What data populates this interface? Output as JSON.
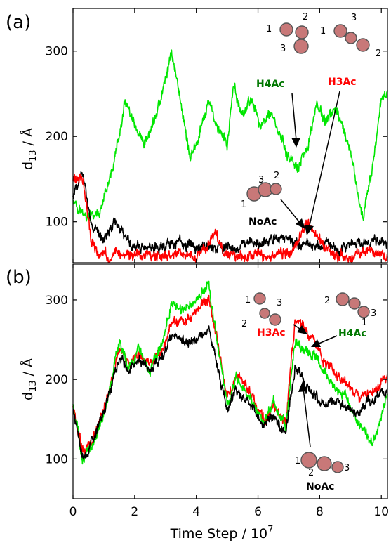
{
  "chart_data": [
    {
      "type": "line",
      "panel_label": "(a)",
      "ylabel_main": "d",
      "ylabel_sub": "13",
      "ylabel_rest": " / Å",
      "xlim": [
        0,
        10.2
      ],
      "ylim": [
        52,
        350
      ],
      "yticks": [
        100,
        200,
        300
      ],
      "xticks": [
        0,
        2,
        4,
        6,
        8,
        10
      ],
      "show_xtick_labels": false,
      "grid": false,
      "series": [
        {
          "color": "#00e600",
          "x": [
            0,
            0.3,
            0.5,
            0.9,
            1.2,
            1.5,
            1.7,
            2.0,
            2.3,
            2.6,
            2.9,
            3.2,
            3.5,
            3.8,
            4.1,
            4.4,
            4.7,
            5.0,
            5.2,
            5.5,
            5.8,
            6.1,
            6.4,
            6.7,
            7.0,
            7.3,
            7.6,
            7.9,
            8.2,
            8.5,
            8.8,
            9.1,
            9.4,
            9.7,
            10.0,
            10.2
          ],
          "y": [
            130,
            110,
            105,
            110,
            150,
            200,
            240,
            210,
            185,
            215,
            250,
            300,
            240,
            175,
            200,
            240,
            210,
            190,
            255,
            225,
            245,
            210,
            230,
            200,
            175,
            160,
            185,
            240,
            215,
            235,
            200,
            165,
            100,
            160,
            245,
            255
          ]
        },
        {
          "color": "#000000",
          "x": [
            0,
            0.3,
            0.6,
            1.0,
            1.3,
            1.6,
            1.9,
            2.4,
            2.9,
            3.4,
            3.9,
            4.4,
            4.9,
            5.4,
            5.9,
            6.4,
            6.9,
            7.2,
            7.5,
            7.8,
            8.1,
            8.6,
            9.1,
            9.6,
            10.2
          ],
          "y": [
            130,
            160,
            95,
            80,
            100,
            90,
            72,
            70,
            72,
            75,
            70,
            72,
            70,
            73,
            72,
            75,
            82,
            75,
            78,
            72,
            75,
            70,
            72,
            75,
            70
          ]
        },
        {
          "color": "#ff0000",
          "x": [
            0,
            0.3,
            0.6,
            1.0,
            1.4,
            1.8,
            2.3,
            2.8,
            3.3,
            3.8,
            4.3,
            4.6,
            4.9,
            5.4,
            5.9,
            6.4,
            6.9,
            7.3,
            7.6,
            7.9,
            8.2,
            8.7,
            9.2,
            9.7,
            10.2
          ],
          "y": [
            150,
            155,
            75,
            60,
            65,
            58,
            62,
            60,
            62,
            60,
            65,
            90,
            62,
            60,
            65,
            60,
            62,
            78,
            100,
            80,
            65,
            60,
            62,
            65,
            60
          ]
        }
      ],
      "annotations": [
        {
          "text": "H4Ac",
          "color": "#007700"
        },
        {
          "text": "H3Ac",
          "color": "#ff0000"
        },
        {
          "text": "NoAc",
          "color": "#000000"
        }
      ],
      "domain_numbers": [
        "1",
        "2",
        "3",
        "1",
        "2",
        "3",
        "1",
        "2",
        "3"
      ]
    },
    {
      "type": "line",
      "panel_label": "(b)",
      "ylabel_main": "d",
      "ylabel_sub": "13",
      "ylabel_rest": " / Å",
      "xlabel_main": "Time Step / 10",
      "xlabel_sup": "7",
      "xlim": [
        0,
        10.2
      ],
      "ylim": [
        50,
        345
      ],
      "yticks": [
        100,
        200,
        300
      ],
      "xticks": [
        0,
        2,
        4,
        6,
        8,
        10
      ],
      "xtick_labels": [
        "0",
        "2",
        "4",
        "6",
        "8",
        "10"
      ],
      "show_xtick_labels": true,
      "grid": false,
      "series": [
        {
          "color": "#ff0000",
          "x": [
            0,
            0.3,
            0.6,
            0.9,
            1.2,
            1.5,
            1.8,
            2.1,
            2.5,
            2.9,
            3.2,
            3.6,
            4.0,
            4.4,
            4.7,
            5.0,
            5.3,
            5.6,
            5.9,
            6.2,
            6.5,
            6.9,
            7.2,
            7.5,
            7.8,
            8.1,
            8.5,
            8.9,
            9.3,
            9.7,
            10.2
          ],
          "y": [
            165,
            110,
            120,
            150,
            190,
            240,
            220,
            230,
            220,
            235,
            275,
            270,
            285,
            300,
            245,
            180,
            200,
            195,
            170,
            150,
            165,
            145,
            275,
            265,
            250,
            225,
            210,
            195,
            175,
            185,
            205
          ]
        },
        {
          "color": "#00e600",
          "x": [
            0,
            0.3,
            0.6,
            0.9,
            1.2,
            1.5,
            1.8,
            2.1,
            2.5,
            2.9,
            3.2,
            3.6,
            4.0,
            4.4,
            4.7,
            5.0,
            5.3,
            5.6,
            5.9,
            6.2,
            6.5,
            6.9,
            7.2,
            7.5,
            7.8,
            8.1,
            8.5,
            8.9,
            9.3,
            9.7,
            10.2
          ],
          "y": [
            170,
            100,
            115,
            145,
            185,
            250,
            215,
            235,
            215,
            245,
            295,
            285,
            300,
            320,
            240,
            170,
            200,
            185,
            165,
            150,
            170,
            140,
            250,
            240,
            235,
            210,
            190,
            180,
            140,
            120,
            180
          ]
        },
        {
          "color": "#000000",
          "x": [
            0,
            0.3,
            0.6,
            0.9,
            1.2,
            1.5,
            1.8,
            2.1,
            2.5,
            2.9,
            3.2,
            3.6,
            4.0,
            4.4,
            4.7,
            5.0,
            5.3,
            5.6,
            5.9,
            6.2,
            6.5,
            6.9,
            7.2,
            7.5,
            7.8,
            8.1,
            8.5,
            8.9,
            9.3,
            9.7,
            10.2
          ],
          "y": [
            165,
            105,
            118,
            148,
            188,
            230,
            210,
            225,
            210,
            230,
            255,
            245,
            250,
            260,
            215,
            160,
            185,
            175,
            160,
            140,
            155,
            130,
            215,
            195,
            180,
            170,
            175,
            165,
            160,
            175,
            185
          ]
        }
      ],
      "annotations": [
        {
          "text": "H3Ac",
          "color": "#ff0000"
        },
        {
          "text": "H4Ac",
          "color": "#007700"
        },
        {
          "text": "NoAc",
          "color": "#000000"
        }
      ],
      "domain_numbers": [
        "1",
        "2",
        "3",
        "1",
        "2",
        "3",
        "1",
        "2",
        "3"
      ]
    }
  ],
  "colors": {
    "green": "#00e600",
    "red": "#ff0000",
    "black": "#000000",
    "dark_green": "#007700",
    "molecule": "#c87878"
  },
  "icons": [
    "nucleosome-array-icon"
  ]
}
